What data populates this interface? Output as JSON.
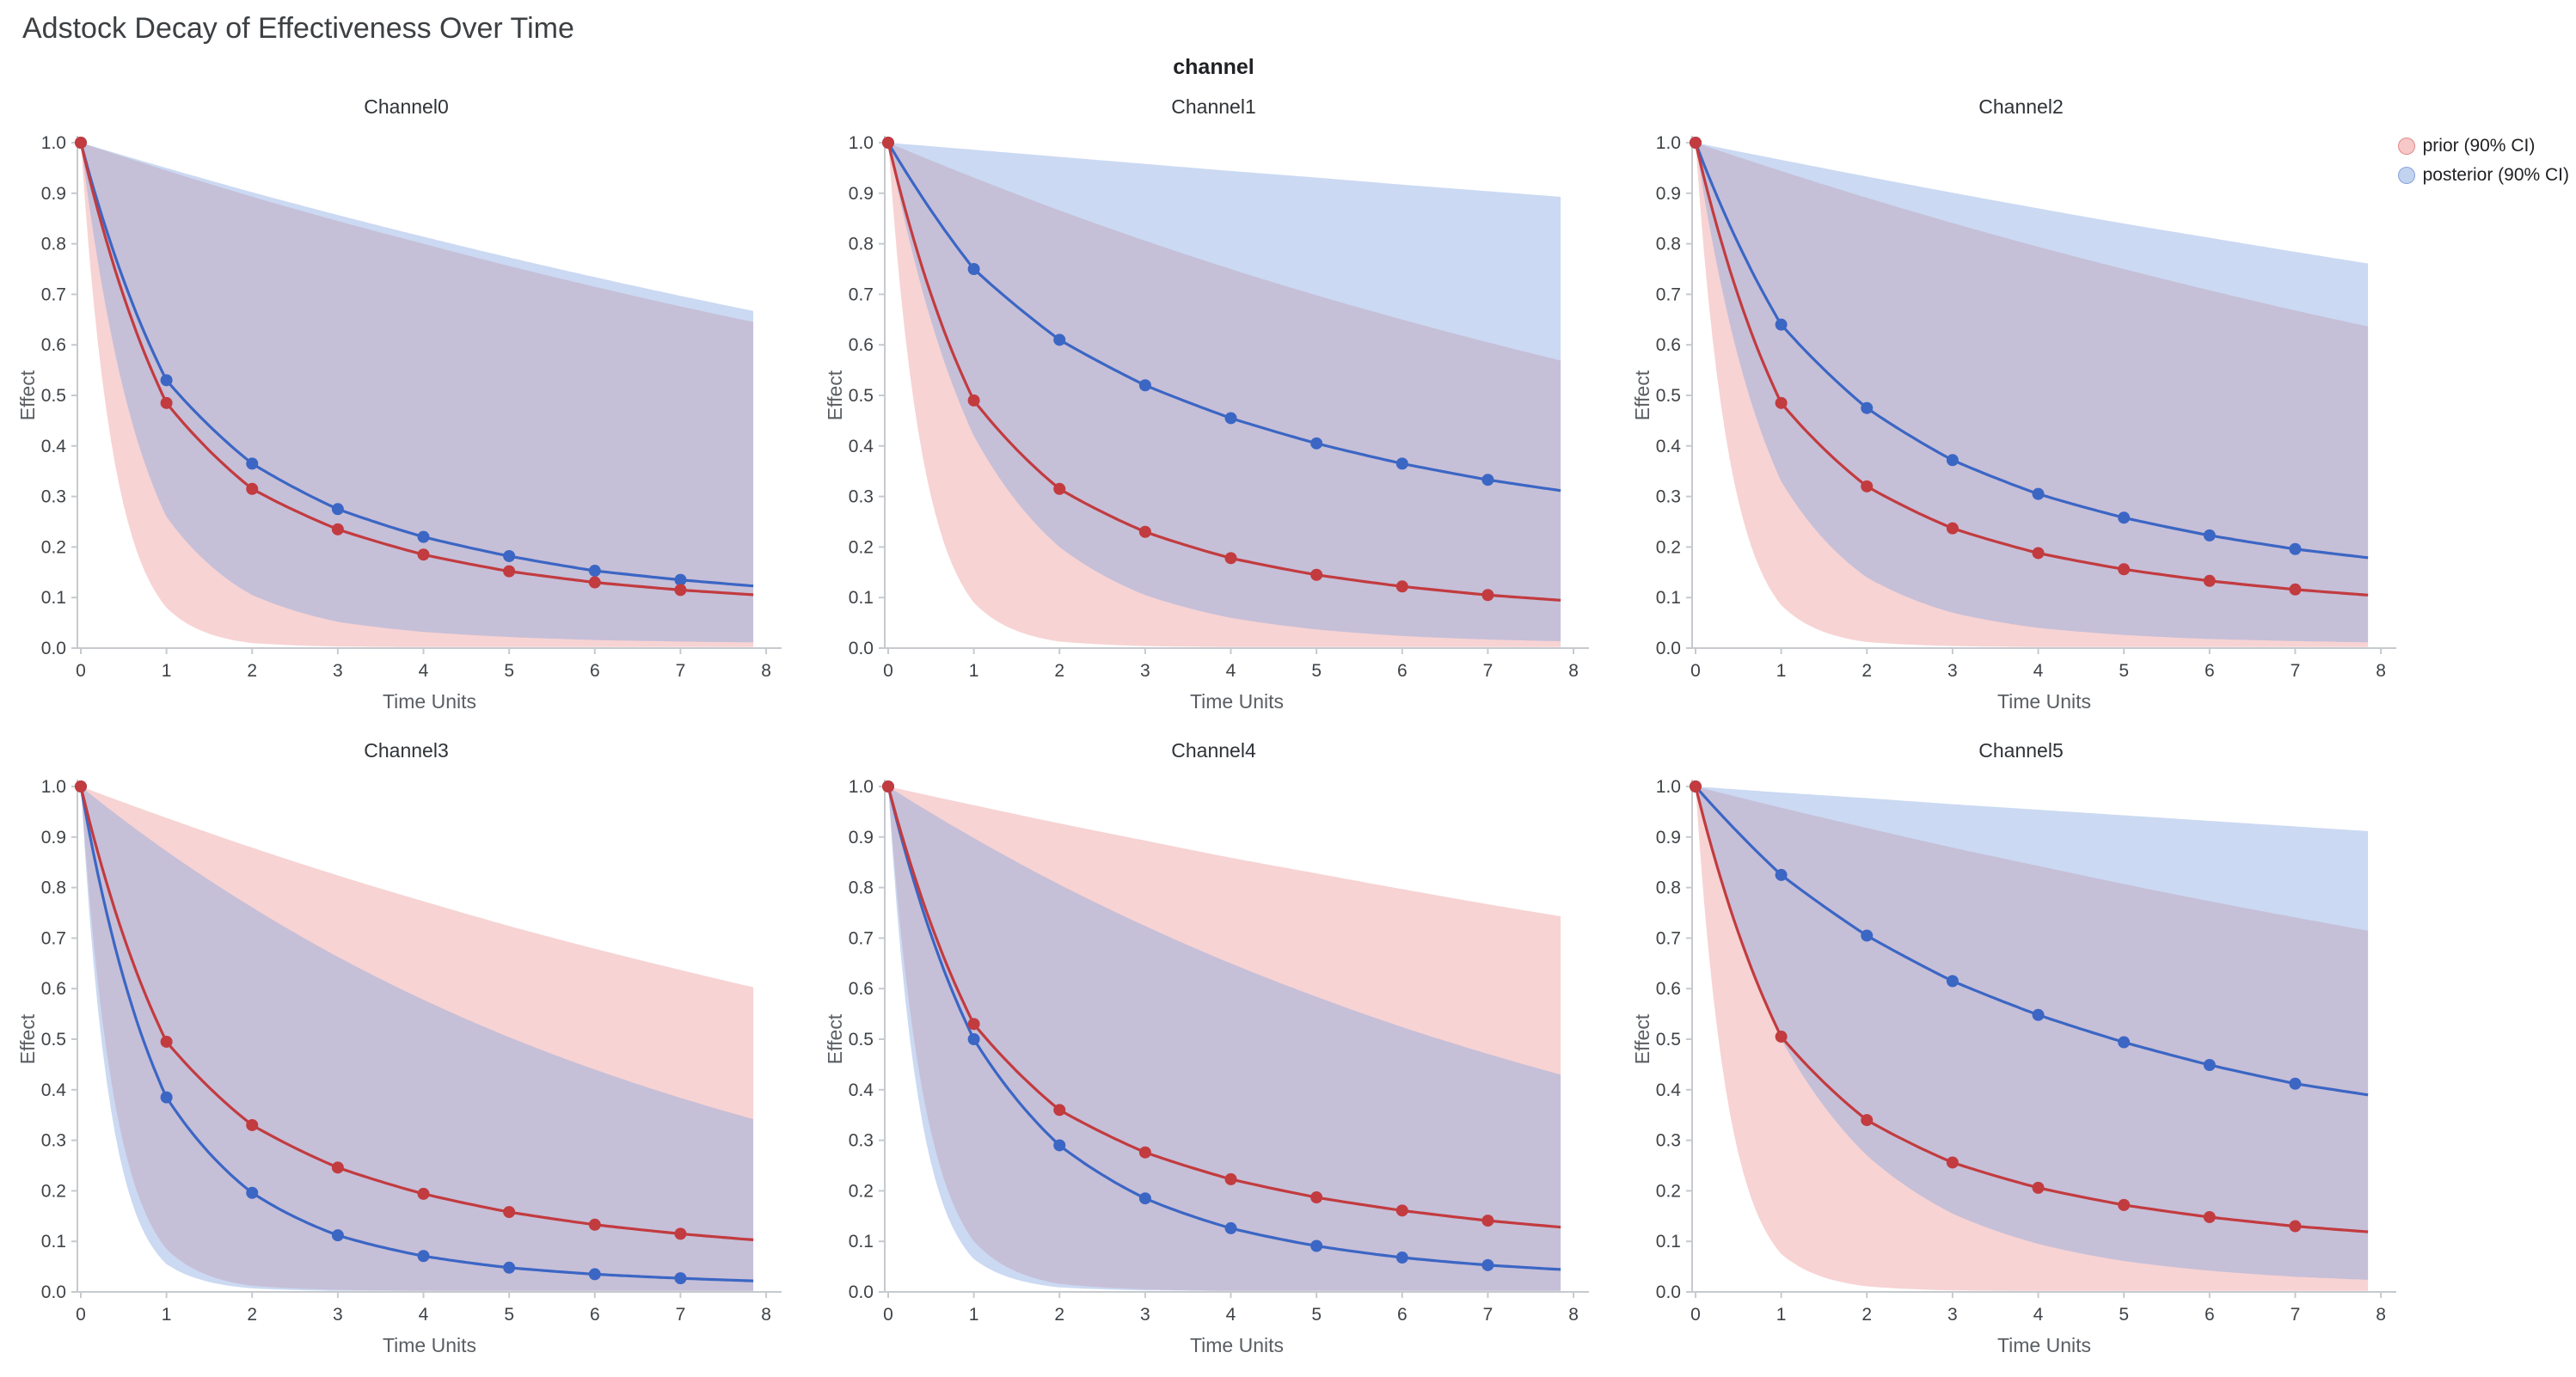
{
  "page": {
    "title": "Adstock Decay of Effectiveness Over Time",
    "facet_label": "channel"
  },
  "chart_data": {
    "type": "line",
    "title": "Adstock Decay of Effectiveness Over Time",
    "facet_variable": "channel",
    "xlabel": "Time Units",
    "ylabel": "Effect",
    "xlim": [
      0,
      8
    ],
    "ylim": [
      0.0,
      1.0
    ],
    "grid": false,
    "legend_position": "top-right",
    "x": [
      0,
      1,
      2,
      3,
      4,
      5,
      6,
      7,
      8
    ],
    "marker_count": 8,
    "x_data_end": 7.85,
    "xticks": [
      "0",
      "1",
      "2",
      "3",
      "4",
      "5",
      "6",
      "7",
      "8"
    ],
    "yticks": [
      "0.0",
      "0.1",
      "0.2",
      "0.3",
      "0.4",
      "0.5",
      "0.6",
      "0.7",
      "0.8",
      "0.9",
      "1.0"
    ],
    "legend": [
      {
        "id": "prior",
        "label": "prior (90% CI)"
      },
      {
        "id": "posterior",
        "label": "posterior (90% CI)"
      }
    ],
    "colors": {
      "prior_line": "#c23b3f",
      "posterior_line": "#3b66c4",
      "prior_band": "rgba(235,140,140,0.38)",
      "posterior_band": "rgba(130,165,225,0.42)",
      "prior_swatch_bg": "rgba(239,154,154,0.55)",
      "prior_swatch_border": "rgba(194,59,63,0.45)",
      "posterior_swatch_bg": "rgba(144,174,228,0.55)",
      "posterior_swatch_border": "rgba(59,102,196,0.45)",
      "axis": "#c6cace",
      "tick_text": "#3f4347",
      "label_text": "#5a5e63",
      "title_text": "#2f3337"
    },
    "panels": [
      {
        "name": "Channel0",
        "prior": {
          "mean": [
            1.0,
            0.485,
            0.315,
            0.235,
            0.185,
            0.152,
            0.13,
            0.115,
            0.104
          ],
          "lower": [
            1.0,
            0.08,
            0.01,
            0.003,
            0.002,
            0.002,
            0.002,
            0.002,
            0.002
          ],
          "upper": [
            1.0,
            0.945,
            0.893,
            0.845,
            0.8,
            0.756,
            0.715,
            0.676,
            0.64
          ]
        },
        "posterior": {
          "mean": [
            1.0,
            0.53,
            0.365,
            0.275,
            0.22,
            0.182,
            0.153,
            0.135,
            0.121
          ],
          "lower": [
            1.0,
            0.26,
            0.105,
            0.052,
            0.032,
            0.022,
            0.016,
            0.013,
            0.011
          ],
          "upper": [
            1.0,
            0.95,
            0.902,
            0.857,
            0.814,
            0.773,
            0.734,
            0.697,
            0.662
          ]
        }
      },
      {
        "name": "Channel1",
        "prior": {
          "mean": [
            1.0,
            0.49,
            0.315,
            0.23,
            0.178,
            0.145,
            0.122,
            0.105,
            0.093
          ],
          "lower": [
            1.0,
            0.09,
            0.013,
            0.004,
            0.002,
            0.002,
            0.002,
            0.002,
            0.002
          ],
          "upper": [
            1.0,
            0.931,
            0.866,
            0.806,
            0.75,
            0.698,
            0.65,
            0.605,
            0.563
          ]
        },
        "posterior": {
          "mean": [
            1.0,
            0.75,
            0.61,
            0.52,
            0.455,
            0.405,
            0.365,
            0.333,
            0.308
          ],
          "lower": [
            1.0,
            0.42,
            0.2,
            0.105,
            0.06,
            0.037,
            0.024,
            0.017,
            0.013
          ],
          "upper": [
            1.0,
            0.986,
            0.972,
            0.958,
            0.944,
            0.931,
            0.917,
            0.904,
            0.891
          ]
        }
      },
      {
        "name": "Channel2",
        "prior": {
          "mean": [
            1.0,
            0.485,
            0.32,
            0.237,
            0.188,
            0.156,
            0.133,
            0.116,
            0.103
          ],
          "lower": [
            1.0,
            0.085,
            0.012,
            0.004,
            0.002,
            0.002,
            0.002,
            0.002,
            0.002
          ],
          "upper": [
            1.0,
            0.944,
            0.891,
            0.841,
            0.794,
            0.75,
            0.708,
            0.668,
            0.631
          ]
        },
        "posterior": {
          "mean": [
            1.0,
            0.64,
            0.475,
            0.372,
            0.305,
            0.258,
            0.223,
            0.196,
            0.176
          ],
          "lower": [
            1.0,
            0.33,
            0.14,
            0.07,
            0.04,
            0.026,
            0.018,
            0.014,
            0.011
          ],
          "upper": [
            1.0,
            0.966,
            0.933,
            0.901,
            0.87,
            0.84,
            0.812,
            0.784,
            0.757
          ]
        }
      },
      {
        "name": "Channel3",
        "prior": {
          "mean": [
            1.0,
            0.495,
            0.33,
            0.246,
            0.194,
            0.158,
            0.133,
            0.115,
            0.101
          ],
          "lower": [
            1.0,
            0.085,
            0.012,
            0.004,
            0.002,
            0.002,
            0.002,
            0.002,
            0.002
          ],
          "upper": [
            1.0,
            0.938,
            0.879,
            0.824,
            0.773,
            0.724,
            0.679,
            0.637,
            0.597
          ]
        },
        "posterior": {
          "mean": [
            1.0,
            0.385,
            0.196,
            0.112,
            0.071,
            0.048,
            0.035,
            0.027,
            0.021
          ],
          "lower": [
            1.0,
            0.055,
            0.007,
            0.002,
            0.002,
            0.002,
            0.002,
            0.002,
            0.002
          ],
          "upper": [
            1.0,
            0.872,
            0.761,
            0.663,
            0.578,
            0.504,
            0.44,
            0.384,
            0.335
          ]
        }
      },
      {
        "name": "Channel4",
        "prior": {
          "mean": [
            1.0,
            0.53,
            0.36,
            0.276,
            0.223,
            0.187,
            0.161,
            0.141,
            0.126
          ],
          "lower": [
            1.0,
            0.1,
            0.016,
            0.005,
            0.002,
            0.002,
            0.002,
            0.002,
            0.002
          ],
          "upper": [
            1.0,
            0.963,
            0.927,
            0.893,
            0.859,
            0.828,
            0.797,
            0.767,
            0.739
          ]
        },
        "posterior": {
          "mean": [
            1.0,
            0.5,
            0.29,
            0.185,
            0.126,
            0.091,
            0.068,
            0.053,
            0.043
          ],
          "lower": [
            1.0,
            0.065,
            0.009,
            0.003,
            0.002,
            0.002,
            0.002,
            0.002,
            0.002
          ],
          "upper": [
            1.0,
            0.898,
            0.806,
            0.724,
            0.65,
            0.584,
            0.524,
            0.471,
            0.423
          ]
        }
      },
      {
        "name": "Channel5",
        "prior": {
          "mean": [
            1.0,
            0.505,
            0.34,
            0.256,
            0.206,
            0.172,
            0.148,
            0.13,
            0.117
          ],
          "lower": [
            1.0,
            0.075,
            0.011,
            0.003,
            0.002,
            0.002,
            0.002,
            0.002,
            0.002
          ],
          "upper": [
            1.0,
            0.958,
            0.918,
            0.879,
            0.843,
            0.807,
            0.773,
            0.741,
            0.71
          ]
        },
        "posterior": {
          "mean": [
            1.0,
            0.825,
            0.705,
            0.615,
            0.548,
            0.494,
            0.449,
            0.412,
            0.386
          ],
          "lower": [
            1.0,
            0.5,
            0.27,
            0.155,
            0.095,
            0.061,
            0.042,
            0.03,
            0.023
          ],
          "upper": [
            1.0,
            0.988,
            0.977,
            0.965,
            0.954,
            0.943,
            0.932,
            0.921,
            0.91
          ]
        }
      }
    ]
  }
}
